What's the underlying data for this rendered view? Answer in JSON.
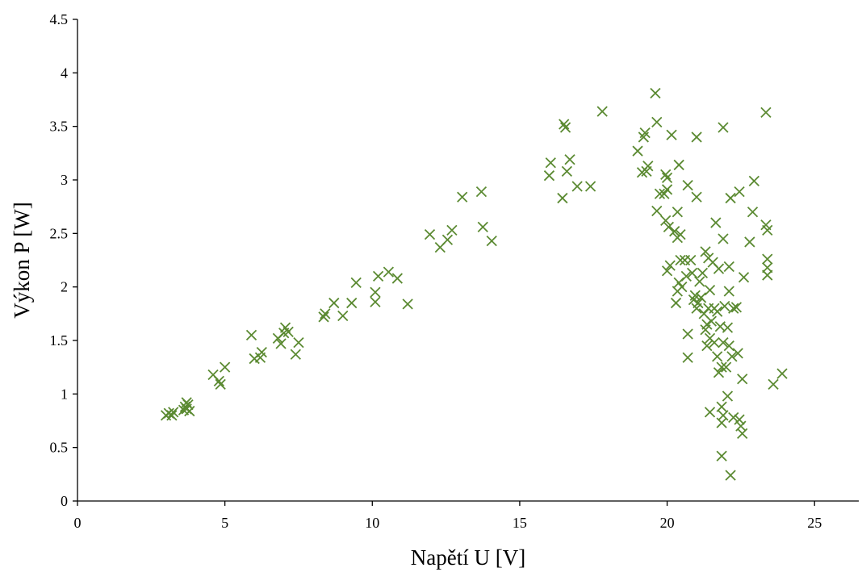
{
  "chart_data": {
    "type": "scatter",
    "xlabel": "Napětí U [V]",
    "ylabel": "Výkon P [W]",
    "xlim": [
      0,
      26.5
    ],
    "ylim": [
      0,
      4.5
    ],
    "xticks": [
      "0",
      "5",
      "10",
      "15",
      "20",
      "25"
    ],
    "yticks": [
      "0",
      "0.5",
      "1",
      "1.5",
      "2",
      "2.5",
      "3",
      "3.5",
      "4",
      "4.5"
    ],
    "grid": false,
    "legend": "none",
    "marker": "x",
    "color": "#5b8a32",
    "series": [
      {
        "points": [
          [
            3.0,
            0.8
          ],
          [
            3.1,
            0.82
          ],
          [
            3.2,
            0.8
          ],
          [
            3.25,
            0.83
          ],
          [
            3.6,
            0.85
          ],
          [
            3.65,
            0.88
          ],
          [
            3.7,
            0.92
          ],
          [
            3.7,
            0.86
          ],
          [
            3.75,
            0.9
          ],
          [
            3.8,
            0.84
          ],
          [
            4.6,
            1.18
          ],
          [
            4.8,
            1.12
          ],
          [
            4.85,
            1.09
          ],
          [
            5.0,
            1.25
          ],
          [
            5.9,
            1.55
          ],
          [
            6.0,
            1.33
          ],
          [
            6.2,
            1.34
          ],
          [
            6.25,
            1.39
          ],
          [
            6.8,
            1.52
          ],
          [
            6.9,
            1.47
          ],
          [
            7.0,
            1.57
          ],
          [
            7.05,
            1.62
          ],
          [
            7.15,
            1.58
          ],
          [
            7.4,
            1.37
          ],
          [
            7.5,
            1.48
          ],
          [
            8.35,
            1.72
          ],
          [
            8.4,
            1.75
          ],
          [
            8.7,
            1.85
          ],
          [
            9.0,
            1.73
          ],
          [
            9.3,
            1.85
          ],
          [
            9.45,
            2.04
          ],
          [
            10.1,
            1.86
          ],
          [
            10.1,
            1.95
          ],
          [
            10.2,
            2.1
          ],
          [
            10.55,
            2.14
          ],
          [
            10.85,
            2.08
          ],
          [
            11.2,
            1.84
          ],
          [
            11.95,
            2.49
          ],
          [
            12.3,
            2.37
          ],
          [
            12.55,
            2.44
          ],
          [
            12.7,
            2.53
          ],
          [
            13.05,
            2.84
          ],
          [
            13.7,
            2.89
          ],
          [
            13.75,
            2.56
          ],
          [
            14.05,
            2.43
          ],
          [
            16.0,
            3.04
          ],
          [
            16.05,
            3.16
          ],
          [
            16.45,
            2.83
          ],
          [
            16.5,
            3.52
          ],
          [
            16.55,
            3.49
          ],
          [
            16.6,
            3.08
          ],
          [
            16.7,
            3.19
          ],
          [
            16.95,
            2.94
          ],
          [
            17.4,
            2.94
          ],
          [
            17.8,
            3.64
          ],
          [
            19.0,
            3.27
          ],
          [
            19.15,
            3.07
          ],
          [
            19.2,
            3.4
          ],
          [
            19.25,
            3.44
          ],
          [
            19.3,
            3.08
          ],
          [
            19.35,
            3.13
          ],
          [
            19.6,
            3.81
          ],
          [
            19.65,
            3.54
          ],
          [
            19.65,
            2.71
          ],
          [
            19.75,
            2.87
          ],
          [
            19.9,
            2.87
          ],
          [
            19.95,
            3.05
          ],
          [
            19.95,
            2.62
          ],
          [
            20.0,
            2.91
          ],
          [
            20.0,
            3.02
          ],
          [
            20.05,
            2.56
          ],
          [
            20.15,
            3.42
          ],
          [
            20.25,
            2.52
          ],
          [
            20.35,
            2.7
          ],
          [
            20.4,
            3.14
          ],
          [
            20.35,
            2.46
          ],
          [
            20.45,
            2.49
          ],
          [
            20.0,
            2.15
          ],
          [
            20.1,
            2.2
          ],
          [
            20.3,
            1.85
          ],
          [
            20.35,
            1.96
          ],
          [
            20.4,
            2.04
          ],
          [
            20.45,
            2.25
          ],
          [
            20.5,
            2.0
          ],
          [
            20.6,
            2.25
          ],
          [
            20.65,
            2.1
          ],
          [
            20.7,
            1.56
          ],
          [
            20.7,
            2.95
          ],
          [
            20.7,
            1.34
          ],
          [
            20.8,
            2.25
          ],
          [
            20.85,
            2.13
          ],
          [
            20.9,
            1.88
          ],
          [
            20.95,
            1.92
          ],
          [
            21.0,
            1.8
          ],
          [
            21.0,
            2.84
          ],
          [
            21.0,
            3.4
          ],
          [
            21.05,
            1.85
          ],
          [
            21.1,
            2.05
          ],
          [
            21.15,
            1.9
          ],
          [
            21.2,
            2.13
          ],
          [
            21.25,
            1.75
          ],
          [
            21.3,
            1.6
          ],
          [
            21.3,
            2.33
          ],
          [
            21.35,
            1.45
          ],
          [
            21.35,
            1.65
          ],
          [
            21.4,
            1.8
          ],
          [
            21.4,
            2.27
          ],
          [
            21.45,
            1.52
          ],
          [
            21.45,
            1.97
          ],
          [
            21.45,
            0.83
          ],
          [
            21.5,
            1.68
          ],
          [
            21.55,
            2.23
          ],
          [
            21.6,
            1.8
          ],
          [
            21.6,
            1.48
          ],
          [
            21.65,
            2.6
          ],
          [
            21.7,
            1.77
          ],
          [
            21.7,
            1.35
          ],
          [
            21.75,
            1.2
          ],
          [
            21.75,
            2.17
          ],
          [
            21.8,
            1.63
          ],
          [
            21.85,
            1.25
          ],
          [
            21.85,
            0.88
          ],
          [
            21.85,
            0.73
          ],
          [
            21.85,
            0.42
          ],
          [
            21.9,
            2.45
          ],
          [
            21.9,
            3.49
          ],
          [
            21.9,
            1.48
          ],
          [
            21.9,
            0.8
          ],
          [
            21.95,
            1.82
          ],
          [
            22.0,
            1.25
          ],
          [
            22.05,
            0.98
          ],
          [
            22.05,
            1.62
          ],
          [
            22.1,
            1.45
          ],
          [
            22.1,
            2.19
          ],
          [
            22.1,
            1.96
          ],
          [
            22.15,
            2.83
          ],
          [
            22.15,
            0.24
          ],
          [
            22.2,
            1.35
          ],
          [
            22.25,
            1.8
          ],
          [
            22.25,
            0.78
          ],
          [
            22.35,
            1.81
          ],
          [
            22.4,
            1.38
          ],
          [
            22.45,
            2.89
          ],
          [
            22.45,
            0.76
          ],
          [
            22.5,
            0.7
          ],
          [
            22.55,
            1.14
          ],
          [
            22.55,
            0.63
          ],
          [
            22.6,
            2.09
          ],
          [
            22.8,
            2.42
          ],
          [
            22.9,
            2.7
          ],
          [
            22.95,
            2.99
          ],
          [
            23.35,
            3.63
          ],
          [
            23.35,
            2.58
          ],
          [
            23.4,
            2.53
          ],
          [
            23.4,
            2.26
          ],
          [
            23.4,
            2.18
          ],
          [
            23.4,
            2.11
          ],
          [
            23.6,
            1.09
          ],
          [
            23.9,
            1.19
          ]
        ]
      }
    ]
  }
}
